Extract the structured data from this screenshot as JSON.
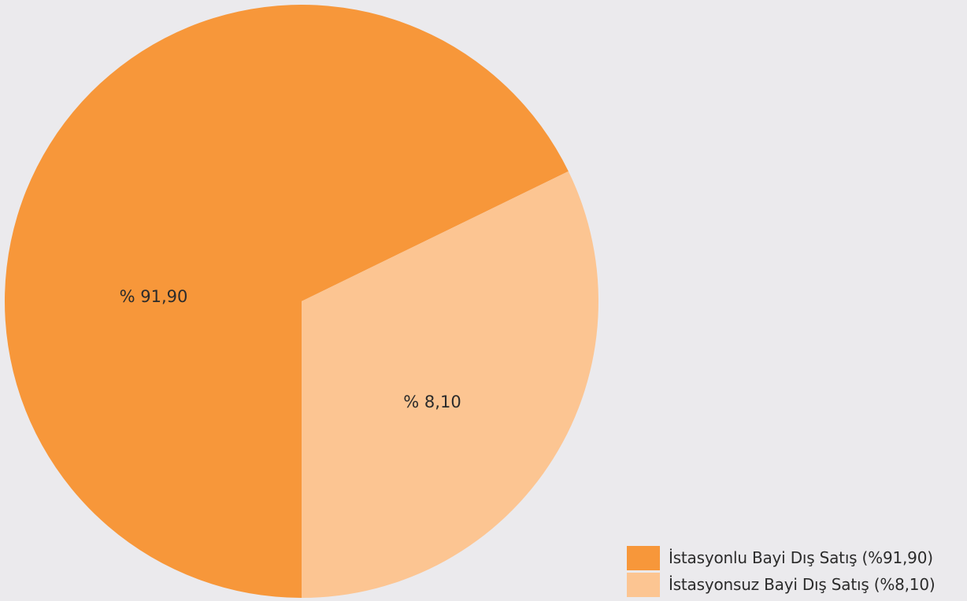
{
  "chart_data": {
    "type": "pie",
    "title": "",
    "slices": [
      {
        "name": "İstasyonlu Bayi Dış Satış",
        "value": 91.9,
        "label": "% 91,90",
        "color": "#f7973a"
      },
      {
        "name": "İstasyonsuz Bayi Dış Satış",
        "value": 8.1,
        "label": "% 8,10",
        "color": "#fcc592"
      }
    ],
    "legend": {
      "placement": "bottom-right",
      "entries": [
        {
          "label": "İstasyonlu Bayi Dış Satış (%91,90)",
          "color": "#f7973a"
        },
        {
          "label": "İstasyonsuz Bayi Dış Satış (%8,10)",
          "color": "#fcc592"
        }
      ]
    }
  }
}
